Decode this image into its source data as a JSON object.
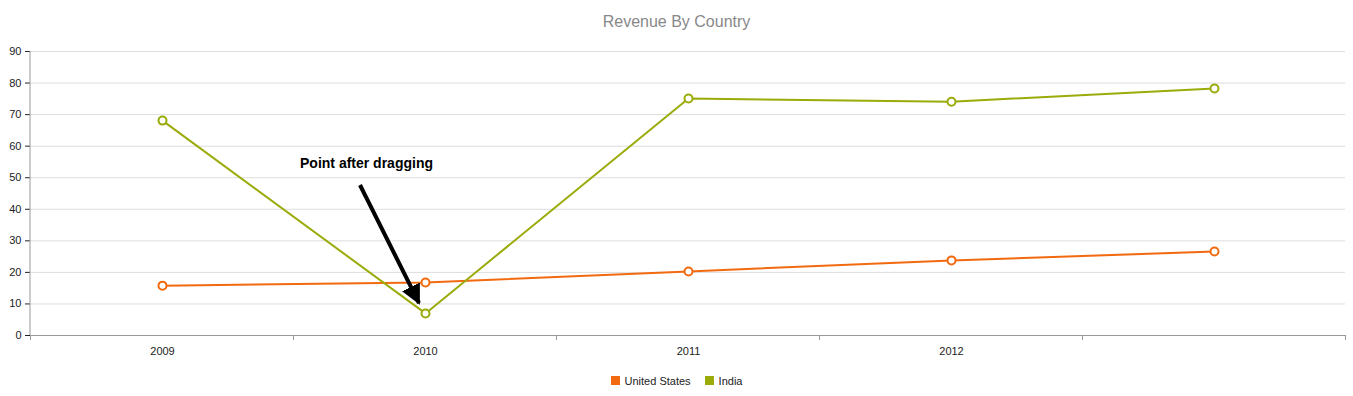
{
  "chart_data": {
    "type": "line",
    "title": "Revenue By Country",
    "categories": [
      "2009",
      "2010",
      "2011",
      "2012",
      null
    ],
    "series": [
      {
        "name": "United States",
        "color": "#f26a10",
        "values": [
          15.8,
          16.8,
          20.3,
          23.8,
          26.6
        ]
      },
      {
        "name": "India",
        "color": "#9aab0a",
        "values": [
          68.1,
          7,
          75.1,
          74.1,
          78.3
        ]
      }
    ],
    "ylim": [
      0,
      90
    ],
    "yticks": [
      0,
      10,
      20,
      30,
      40,
      50,
      60,
      70,
      80,
      90
    ],
    "grid": true,
    "marker": "circle",
    "legend": "bottom",
    "annotations": [
      {
        "text": "Point after dragging"
      }
    ]
  }
}
